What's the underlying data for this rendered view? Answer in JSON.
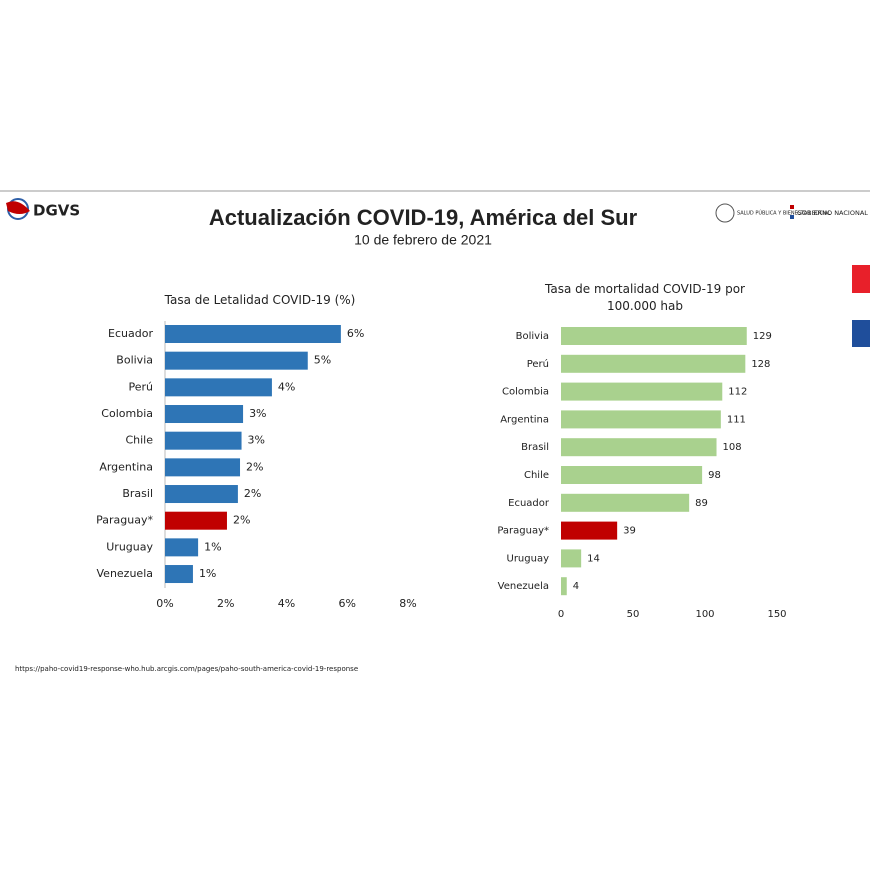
{
  "header": {
    "logo": "DGVS",
    "title": "Actualización COVID-19, América del Sur",
    "subtitle": "10 de febrero de 2021",
    "ministry": "SALUD PÚBLICA Y BIENESTAR SOCIAL",
    "government": "GOBIERNO NACIONAL"
  },
  "source": "https://paho-covid19-response-who.hub.arcgis.com/pages/paho-south-america-covid-19-response",
  "chart_data": [
    {
      "type": "hbar",
      "title": "Tasa de Letalidad COVID-19 (%)",
      "categories": [
        "Ecuador",
        "Bolivia",
        "Perú",
        "Colombia",
        "Chile",
        "Argentina",
        "Brasil",
        "Paraguay*",
        "Uruguay",
        "Venezuela"
      ],
      "values": [
        5.79,
        4.7,
        3.52,
        2.57,
        2.52,
        2.47,
        2.4,
        2.04,
        1.09,
        0.92
      ],
      "value_labels": [
        "6%",
        "5%",
        "4%",
        "3%",
        "3%",
        "2%",
        "2%",
        "2%",
        "1%",
        "1%"
      ],
      "colors": [
        "#2e75b6",
        "#2e75b6",
        "#2e75b6",
        "#2e75b6",
        "#2e75b6",
        "#2e75b6",
        "#2e75b6",
        "#c00000",
        "#2e75b6",
        "#2e75b6"
      ],
      "xlim": [
        0,
        8
      ],
      "xticks": [
        {
          "value": 0,
          "label": "0%"
        },
        {
          "value": 2,
          "label": "2%"
        },
        {
          "value": 4,
          "label": "4%"
        },
        {
          "value": 6,
          "label": "6%"
        },
        {
          "value": 8,
          "label": "8%"
        }
      ]
    },
    {
      "type": "hbar",
      "title": "Tasa de mortalidad COVID-19 por 100.000 hab",
      "categories": [
        "Bolivia",
        "Perú",
        "Colombia",
        "Argentina",
        "Brasil",
        "Chile",
        "Ecuador",
        "Paraguay*",
        "Uruguay",
        "Venezuela"
      ],
      "values": [
        129,
        128,
        112,
        111,
        108,
        98,
        89,
        39,
        14,
        4
      ],
      "colors": [
        "#a9d18e",
        "#a9d18e",
        "#a9d18e",
        "#a9d18e",
        "#a9d18e",
        "#a9d18e",
        "#a9d18e",
        "#c00000",
        "#a9d18e",
        "#a9d18e"
      ],
      "xlim": [
        0,
        150
      ],
      "xticks": [
        0,
        50,
        100,
        150
      ]
    }
  ]
}
